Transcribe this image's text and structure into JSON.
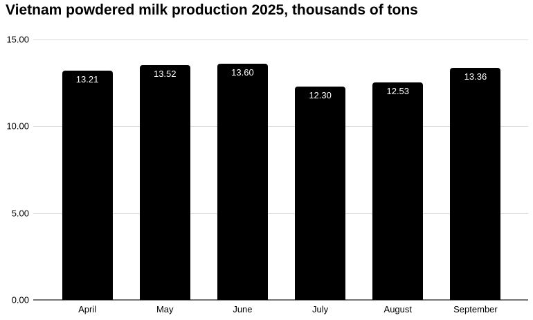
{
  "chart_data": {
    "type": "bar",
    "title": "Vietnam powdered milk production 2025, thousands of tons",
    "categories": [
      "April",
      "May",
      "June",
      "July",
      "August",
      "September"
    ],
    "values": [
      13.21,
      13.52,
      13.6,
      12.3,
      12.53,
      13.36
    ],
    "value_labels": [
      "13.21",
      "13.52",
      "13.60",
      "12.30",
      "12.53",
      "13.36"
    ],
    "xlabel": "",
    "ylabel": "",
    "ylim": [
      0,
      15
    ],
    "yticks": [
      {
        "value": 0,
        "label": "0.00"
      },
      {
        "value": 5,
        "label": "5.00"
      },
      {
        "value": 10,
        "label": "10.00"
      },
      {
        "value": 15,
        "label": "15.00"
      }
    ],
    "grid": "horizontal",
    "legend_position": "none",
    "colors": {
      "bar": "#000000",
      "bar_value_label": "#ffffff",
      "gridline": "#d9d9d9",
      "axis_line": "#757575",
      "title_text": "#000000",
      "tick_text": "#000000",
      "background": "#ffffff"
    }
  }
}
